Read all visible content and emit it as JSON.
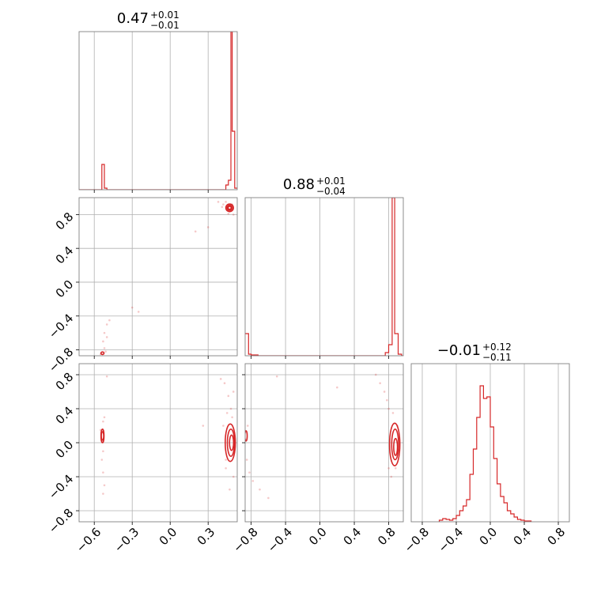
{
  "colors": {
    "line": "#d62728",
    "grid": "#b0b0b0",
    "frame": "#808080",
    "background": "#ffffff"
  },
  "chart_data": {
    "type": "corner",
    "parameters": [
      "",
      "",
      ""
    ],
    "panels": [
      {
        "id": "hist-0",
        "type": "histogram",
        "row": 0,
        "col": 0,
        "title": {
          "median": "0.47",
          "plus": "+0.01",
          "minus": "−0.01"
        },
        "xlim": [
          -0.72,
          0.53
        ],
        "ylim": [
          0,
          1
        ],
        "xgrid": [
          -0.6,
          -0.3,
          0.0,
          0.3
        ],
        "step_x": [
          -0.72,
          -0.54,
          -0.54,
          -0.52,
          -0.52,
          -0.5,
          -0.5,
          0.44,
          0.44,
          0.46,
          0.46,
          0.48,
          0.48,
          0.49,
          0.49,
          0.51,
          0.51,
          0.53
        ],
        "step_y": [
          0,
          0,
          0.16,
          0.16,
          0.01,
          0.01,
          0,
          0,
          0.03,
          0.03,
          0.06,
          0.06,
          1.0,
          1.0,
          0.37,
          0.37,
          0.01,
          0.01
        ]
      },
      {
        "id": "scatter-1-0",
        "type": "density",
        "row": 1,
        "col": 0,
        "xlim": [
          -0.72,
          0.53
        ],
        "ylim": [
          -0.87,
          1.0
        ],
        "xgrid": [
          -0.6,
          -0.3,
          0.0,
          0.3
        ],
        "ygrid": [
          -0.8,
          -0.4,
          0.0,
          0.4,
          0.8
        ],
        "yticks": [
          "−0.8",
          "−0.4",
          "0.0",
          "0.4",
          "0.8"
        ],
        "contours": [
          {
            "cx": 0.47,
            "cy": 0.88,
            "rx": 0.03,
            "ry": 0.045
          },
          {
            "cx": 0.47,
            "cy": 0.88,
            "rx": 0.02,
            "ry": 0.03
          },
          {
            "cx": 0.47,
            "cy": 0.88,
            "rx": 0.012,
            "ry": 0.018
          },
          {
            "cx": -0.535,
            "cy": -0.84,
            "rx": 0.012,
            "ry": 0.015
          }
        ],
        "points": [
          [
            0.42,
            0.92
          ],
          [
            0.44,
            0.95
          ],
          [
            0.45,
            0.85
          ],
          [
            0.5,
            0.8
          ],
          [
            0.49,
            0.92
          ],
          [
            0.41,
            0.89
          ],
          [
            0.46,
            0.81
          ],
          [
            0.38,
            0.95
          ],
          [
            0.3,
            0.65
          ],
          [
            -0.52,
            -0.78
          ],
          [
            -0.53,
            -0.7
          ],
          [
            -0.52,
            -0.6
          ],
          [
            -0.5,
            -0.5
          ],
          [
            -0.48,
            -0.45
          ],
          [
            -0.55,
            -0.85
          ],
          [
            -0.51,
            -0.82
          ],
          [
            -0.3,
            -0.3
          ],
          [
            -0.25,
            -0.35
          ],
          [
            0.2,
            0.6
          ],
          [
            -0.5,
            -0.65
          ]
        ]
      },
      {
        "id": "hist-1",
        "type": "histogram",
        "row": 1,
        "col": 1,
        "title": {
          "median": "0.88",
          "plus": "+0.01",
          "minus": "−0.04"
        },
        "xlim": [
          -0.87,
          0.97
        ],
        "ylim": [
          0,
          1
        ],
        "xgrid": [
          -0.8,
          -0.4,
          0.0,
          0.4,
          0.8
        ],
        "step_x": [
          -0.87,
          -0.83,
          -0.83,
          -0.8,
          -0.8,
          -0.72,
          -0.72,
          0.76,
          0.76,
          0.8,
          0.8,
          0.84,
          0.84,
          0.87,
          0.87,
          0.91,
          0.91,
          0.95,
          0.95,
          0.97
        ],
        "step_y": [
          0.14,
          0.14,
          0.01,
          0.01,
          0.005,
          0.005,
          0,
          0,
          0.02,
          0.02,
          0.07,
          0.07,
          1.0,
          1.0,
          0.14,
          0.14,
          0.01,
          0.01,
          0,
          0
        ]
      },
      {
        "id": "scatter-2-0",
        "type": "density",
        "row": 2,
        "col": 0,
        "xlim": [
          -0.72,
          0.53
        ],
        "ylim": [
          -0.93,
          0.93
        ],
        "xgrid": [
          -0.6,
          -0.3,
          0.0,
          0.3
        ],
        "ygrid": [
          -0.8,
          -0.4,
          0.0,
          0.4,
          0.8
        ],
        "xticks": [
          "−0.6",
          "−0.3",
          "0.0",
          "0.3"
        ],
        "yticks": [
          "−0.8",
          "−0.4",
          "0.0",
          "0.4",
          "0.8"
        ],
        "contours": [
          {
            "cx": -0.535,
            "cy": 0.08,
            "rx": 0.012,
            "ry": 0.08
          },
          {
            "cx": -0.535,
            "cy": 0.08,
            "rx": 0.007,
            "ry": 0.05
          },
          {
            "cx": 0.475,
            "cy": 0.0,
            "rx": 0.04,
            "ry": 0.22
          },
          {
            "cx": 0.48,
            "cy": 0.0,
            "rx": 0.028,
            "ry": 0.16
          },
          {
            "cx": 0.485,
            "cy": 0.0,
            "rx": 0.016,
            "ry": 0.09
          }
        ],
        "points": [
          [
            -0.53,
            0.25
          ],
          [
            -0.54,
            -0.2
          ],
          [
            -0.53,
            -0.35
          ],
          [
            -0.52,
            -0.5
          ],
          [
            -0.53,
            -0.6
          ],
          [
            -0.55,
            0.15
          ],
          [
            -0.52,
            0.3
          ],
          [
            -0.53,
            -0.1
          ],
          [
            0.45,
            0.35
          ],
          [
            0.48,
            0.4
          ],
          [
            0.44,
            -0.3
          ],
          [
            0.5,
            -0.4
          ],
          [
            0.42,
            0.2
          ],
          [
            0.46,
            0.55
          ],
          [
            0.47,
            -0.55
          ],
          [
            0.43,
            0.7
          ],
          [
            0.4,
            0.75
          ],
          [
            0.26,
            0.2
          ],
          [
            0.5,
            0.6
          ],
          [
            -0.5,
            0.78
          ],
          [
            0.44,
            -0.2
          ],
          [
            0.49,
            0.3
          ]
        ]
      },
      {
        "id": "scatter-2-1",
        "type": "density",
        "row": 2,
        "col": 1,
        "xlim": [
          -0.87,
          0.97
        ],
        "ylim": [
          -0.93,
          0.93
        ],
        "xgrid": [
          -0.8,
          -0.4,
          0.0,
          0.4,
          0.8
        ],
        "ygrid": [
          -0.8,
          -0.4,
          0.0,
          0.4,
          0.8
        ],
        "xticks": [
          "−0.8",
          "−0.4",
          "0.0",
          "0.4",
          "0.8"
        ],
        "contours": [
          {
            "cx": 0.87,
            "cy": -0.02,
            "rx": 0.06,
            "ry": 0.25
          },
          {
            "cx": 0.875,
            "cy": -0.02,
            "rx": 0.04,
            "ry": 0.18
          },
          {
            "cx": 0.88,
            "cy": -0.05,
            "rx": 0.022,
            "ry": 0.1
          },
          {
            "cx": -0.86,
            "cy": 0.08,
            "rx": 0.01,
            "ry": 0.06
          }
        ],
        "points": [
          [
            -0.85,
            -0.2
          ],
          [
            -0.82,
            -0.35
          ],
          [
            -0.78,
            -0.45
          ],
          [
            -0.7,
            -0.55
          ],
          [
            -0.6,
            -0.65
          ],
          [
            -0.84,
            0.2
          ],
          [
            0.8,
            0.4
          ],
          [
            0.75,
            0.6
          ],
          [
            0.7,
            0.7
          ],
          [
            0.85,
            0.35
          ],
          [
            0.83,
            -0.4
          ],
          [
            0.8,
            -0.3
          ],
          [
            0.9,
            0.2
          ],
          [
            0.88,
            -0.3
          ],
          [
            -0.5,
            0.78
          ],
          [
            0.2,
            0.65
          ],
          [
            0.65,
            0.8
          ],
          [
            0.78,
            0.5
          ]
        ]
      },
      {
        "id": "hist-2",
        "type": "histogram",
        "row": 2,
        "col": 2,
        "title": {
          "median": "−0.01",
          "plus": "+0.12",
          "minus": "−0.11"
        },
        "xlim": [
          -0.93,
          0.93
        ],
        "ylim": [
          0,
          1
        ],
        "xgrid": [
          -0.8,
          -0.4,
          0.0,
          0.4,
          0.8
        ],
        "xticks": [
          "−0.8",
          "−0.4",
          "0.0",
          "0.4",
          "0.8"
        ],
        "bin_edges": [
          -0.6,
          -0.56,
          -0.52,
          -0.48,
          -0.44,
          -0.4,
          -0.36,
          -0.32,
          -0.28,
          -0.24,
          -0.2,
          -0.16,
          -0.12,
          -0.08,
          -0.04,
          0.0,
          0.04,
          0.08,
          0.12,
          0.16,
          0.2,
          0.24,
          0.28,
          0.32,
          0.36,
          0.4,
          0.44,
          0.48
        ],
        "counts": [
          0.01,
          0.02,
          0.015,
          0.01,
          0.02,
          0.04,
          0.07,
          0.1,
          0.14,
          0.3,
          0.46,
          0.66,
          0.86,
          0.78,
          0.79,
          0.6,
          0.4,
          0.24,
          0.16,
          0.12,
          0.07,
          0.05,
          0.03,
          0.015,
          0.01,
          0.005,
          0.005
        ]
      }
    ]
  }
}
